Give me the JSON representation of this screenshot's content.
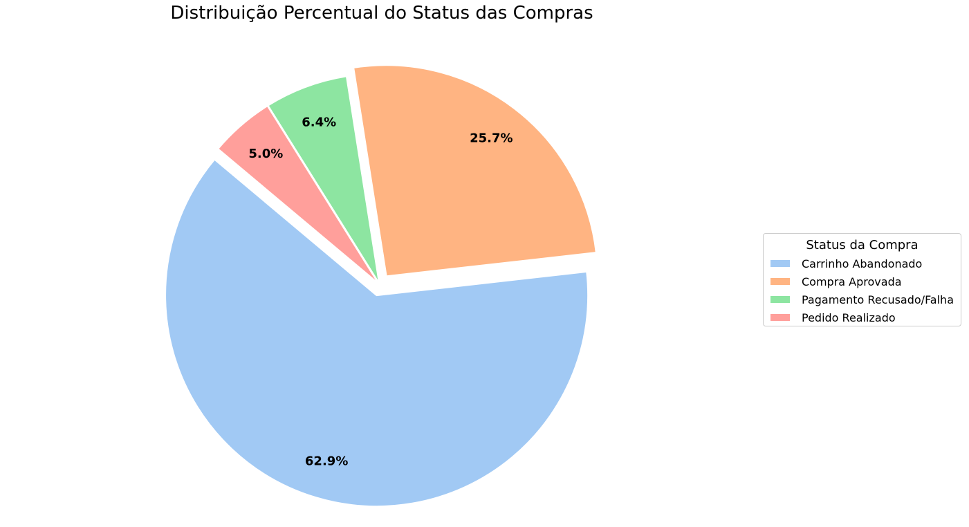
{
  "chart_data": {
    "type": "pie",
    "title": "Distribuição Percentual do Status das Compras",
    "legend_title": "Status da Compra",
    "legend_position": "right",
    "start_angle_deg": 140,
    "direction": "counterclockwise",
    "slices": [
      {
        "label": "Carrinho Abandonado",
        "value": 62.9,
        "pct_label": "62.9%",
        "color": "#a1c9f4",
        "exploded": true
      },
      {
        "label": "Compra Aprovada",
        "value": 25.7,
        "pct_label": "25.7%",
        "color": "#ffb482",
        "exploded": true
      },
      {
        "label": "Pagamento Recusado/Falha",
        "value": 6.4,
        "pct_label": "6.4%",
        "color": "#8de5a1",
        "exploded": false
      },
      {
        "label": "Pedido Realizado",
        "value": 5.0,
        "pct_label": "5.0%",
        "color": "#ff9f9b",
        "exploded": false
      }
    ]
  }
}
